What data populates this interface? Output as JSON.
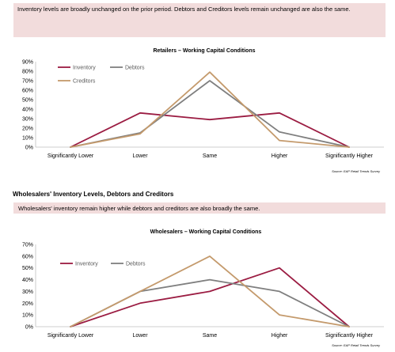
{
  "intro": {
    "text": "Inventory levels are broadly unchanged on the prior period. Debtors and Creditors levels remain unchanged are also the same."
  },
  "wholesale_section": {
    "heading": "Wholesalers' Inventory Levels, Debtors and Creditors",
    "text": "Wholesalers' inventory remain higher while debtors and creditors are also broadly the same."
  },
  "colors": {
    "inventory": "#9b1c42",
    "debtors": "#7f7f7f",
    "creditors": "#c49a6c"
  },
  "chart_data": [
    {
      "type": "line",
      "title": "Retailers – Working Capital Conditions",
      "categories": [
        "Significantly Lower",
        "Lower",
        "Same",
        "Higher",
        "Significantly Higher"
      ],
      "y_ticks": [
        "0%",
        "10%",
        "20%",
        "30%",
        "40%",
        "50%",
        "60%",
        "70%",
        "80%",
        "90%"
      ],
      "ylim": [
        0,
        90
      ],
      "y_unit": "%",
      "grid": false,
      "legend_position": "top-left",
      "series": [
        {
          "name": "Inventory",
          "color": "#9b1c42",
          "values": [
            0,
            36,
            29,
            36,
            0
          ]
        },
        {
          "name": "Debtors",
          "color": "#7f7f7f",
          "values": [
            0,
            15,
            70,
            16,
            0
          ]
        },
        {
          "name": "Creditors",
          "color": "#c49a6c",
          "values": [
            0,
            14,
            79,
            7,
            0
          ]
        }
      ],
      "source": "Source: EAP Retail Trends Survey"
    },
    {
      "type": "line",
      "title": "Wholesalers – Working Capital Conditions",
      "categories": [
        "Significantly Lower",
        "Lower",
        "Same",
        "Higher",
        "Significantly Higher"
      ],
      "y_ticks": [
        "0%",
        "10%",
        "20%",
        "30%",
        "40%",
        "50%",
        "60%",
        "70%"
      ],
      "ylim": [
        0,
        70
      ],
      "y_unit": "%",
      "grid": false,
      "legend_position": "top-left",
      "series": [
        {
          "name": "Inventory",
          "color": "#9b1c42",
          "values": [
            0,
            20,
            30,
            50,
            0
          ]
        },
        {
          "name": "Debtors",
          "color": "#7f7f7f",
          "values": [
            0,
            30,
            40,
            30,
            0
          ]
        },
        {
          "color": "#c49a6c",
          "values": [
            0,
            30,
            60,
            10,
            0
          ]
        }
      ],
      "source": "Source: EAP Retail Trends Survey"
    }
  ]
}
